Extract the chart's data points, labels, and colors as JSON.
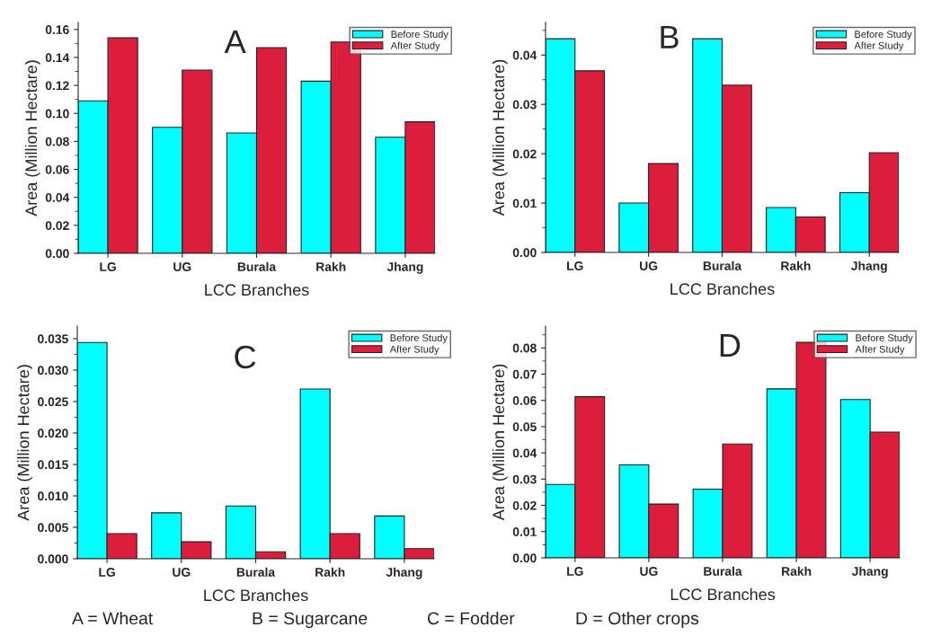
{
  "chart_data": [
    {
      "type": "bar",
      "title": "A",
      "xlabel": "LCC Branches",
      "ylabel": "Area (Million Hectare)",
      "categories": [
        "LG",
        "UG",
        "Burala",
        "Rakh",
        "Jhang"
      ],
      "series": [
        {
          "name": "Before Study",
          "color": "#00ffff",
          "values": [
            0.109,
            0.09,
            0.086,
            0.123,
            0.083
          ]
        },
        {
          "name": "After Study",
          "color": "#dc1e3c",
          "values": [
            0.154,
            0.131,
            0.147,
            0.151,
            0.094
          ]
        }
      ],
      "ylim": [
        0,
        0.165
      ],
      "yticks": [
        {
          "value": 0,
          "label": "0.00"
        },
        {
          "value": 0.01,
          "label": null
        },
        {
          "value": 0.02,
          "label": "0.02"
        },
        {
          "value": 0.03,
          "label": null
        },
        {
          "value": 0.04,
          "label": "0.04"
        },
        {
          "value": 0.05,
          "label": null
        },
        {
          "value": 0.06,
          "label": "0.06"
        },
        {
          "value": 0.07,
          "label": null
        },
        {
          "value": 0.08,
          "label": "0.08"
        },
        {
          "value": 0.09,
          "label": null
        },
        {
          "value": 0.1,
          "label": "0.10"
        },
        {
          "value": 0.11,
          "label": null
        },
        {
          "value": 0.12,
          "label": "0.12"
        },
        {
          "value": 0.13,
          "label": null
        },
        {
          "value": 0.14,
          "label": "0.14"
        },
        {
          "value": 0.15,
          "label": null
        },
        {
          "value": 0.16,
          "label": "0.16"
        }
      ],
      "legend": "top right",
      "grid": false,
      "annotations": [
        "A = Wheat"
      ]
    },
    {
      "type": "bar",
      "title": "B",
      "xlabel": "LCC Branches",
      "ylabel": "Area (Million Hectare)",
      "categories": [
        "LG",
        "UG",
        "Burala",
        "Rakh",
        "Jhang"
      ],
      "series": [
        {
          "name": "Before Study",
          "color": "#00ffff",
          "values": [
            0.0433,
            0.01,
            0.0433,
            0.0091,
            0.0121
          ]
        },
        {
          "name": "After Study",
          "color": "#dc1e3c",
          "values": [
            0.0368,
            0.018,
            0.0339,
            0.0072,
            0.0202
          ]
        }
      ],
      "ylim": [
        0,
        0.0466
      ],
      "yticks": [
        {
          "value": 0,
          "label": "0.00"
        },
        {
          "value": 0.005,
          "label": null
        },
        {
          "value": 0.01,
          "label": "0.01"
        },
        {
          "value": 0.015,
          "label": null
        },
        {
          "value": 0.02,
          "label": "0.02"
        },
        {
          "value": 0.025,
          "label": null
        },
        {
          "value": 0.03,
          "label": "0.03"
        },
        {
          "value": 0.035,
          "label": null
        },
        {
          "value": 0.04,
          "label": "0.04"
        },
        {
          "value": 0.045,
          "label": null
        }
      ],
      "legend": "top right",
      "grid": false,
      "annotations": [
        "B = Sugarcane"
      ]
    },
    {
      "type": "bar",
      "title": "C",
      "xlabel": "LCC Branches",
      "ylabel": "Area (Million Hectare)",
      "categories": [
        "LG",
        "UG",
        "Burala",
        "Rakh",
        "Jhang"
      ],
      "series": [
        {
          "name": "Before Study",
          "color": "#00ffff",
          "values": [
            0.0344,
            0.0073,
            0.0084,
            0.027,
            0.0068
          ]
        },
        {
          "name": "After Study",
          "color": "#dc1e3c",
          "values": [
            0.004,
            0.0027,
            0.0011,
            0.004,
            0.0016
          ]
        }
      ],
      "ylim": [
        0,
        0.037
      ],
      "yticks": [
        {
          "value": 0,
          "label": "0.000"
        },
        {
          "value": 0.0025,
          "label": null
        },
        {
          "value": 0.005,
          "label": "0.005"
        },
        {
          "value": 0.0075,
          "label": null
        },
        {
          "value": 0.01,
          "label": "0.010"
        },
        {
          "value": 0.0125,
          "label": null
        },
        {
          "value": 0.015,
          "label": "0.015"
        },
        {
          "value": 0.0175,
          "label": null
        },
        {
          "value": 0.02,
          "label": "0.020"
        },
        {
          "value": 0.0225,
          "label": null
        },
        {
          "value": 0.025,
          "label": "0.025"
        },
        {
          "value": 0.0275,
          "label": null
        },
        {
          "value": 0.03,
          "label": "0.030"
        },
        {
          "value": 0.0325,
          "label": null
        },
        {
          "value": 0.035,
          "label": "0.035"
        }
      ],
      "legend": "top right",
      "grid": false,
      "annotations": [
        "C = Fodder"
      ]
    },
    {
      "type": "bar",
      "title": "D",
      "xlabel": "LCC Branches",
      "ylabel": "Area (Million Hectare)",
      "categories": [
        "LG",
        "UG",
        "Burala",
        "Rakh",
        "Jhang"
      ],
      "series": [
        {
          "name": "Before Study",
          "color": "#00ffff",
          "values": [
            0.028,
            0.0354,
            0.0262,
            0.0644,
            0.0603
          ]
        },
        {
          "name": "After Study",
          "color": "#dc1e3c",
          "values": [
            0.0614,
            0.0205,
            0.0434,
            0.0821,
            0.0479
          ]
        }
      ],
      "ylim": [
        0,
        0.0883
      ],
      "yticks": [
        {
          "value": 0,
          "label": "0.00"
        },
        {
          "value": 0.005,
          "label": null
        },
        {
          "value": 0.01,
          "label": "0.01"
        },
        {
          "value": 0.015,
          "label": null
        },
        {
          "value": 0.02,
          "label": "0.02"
        },
        {
          "value": 0.025,
          "label": null
        },
        {
          "value": 0.03,
          "label": "0.03"
        },
        {
          "value": 0.035,
          "label": null
        },
        {
          "value": 0.04,
          "label": "0.04"
        },
        {
          "value": 0.045,
          "label": null
        },
        {
          "value": 0.05,
          "label": "0.05"
        },
        {
          "value": 0.055,
          "label": null
        },
        {
          "value": 0.06,
          "label": "0.06"
        },
        {
          "value": 0.065,
          "label": null
        },
        {
          "value": 0.07,
          "label": "0.07"
        },
        {
          "value": 0.075,
          "label": null
        },
        {
          "value": 0.08,
          "label": "0.08"
        },
        {
          "value": 0.085,
          "label": null
        }
      ],
      "legend": "top right",
      "grid": false,
      "annotations": [
        "D = Other crops"
      ]
    }
  ]
}
